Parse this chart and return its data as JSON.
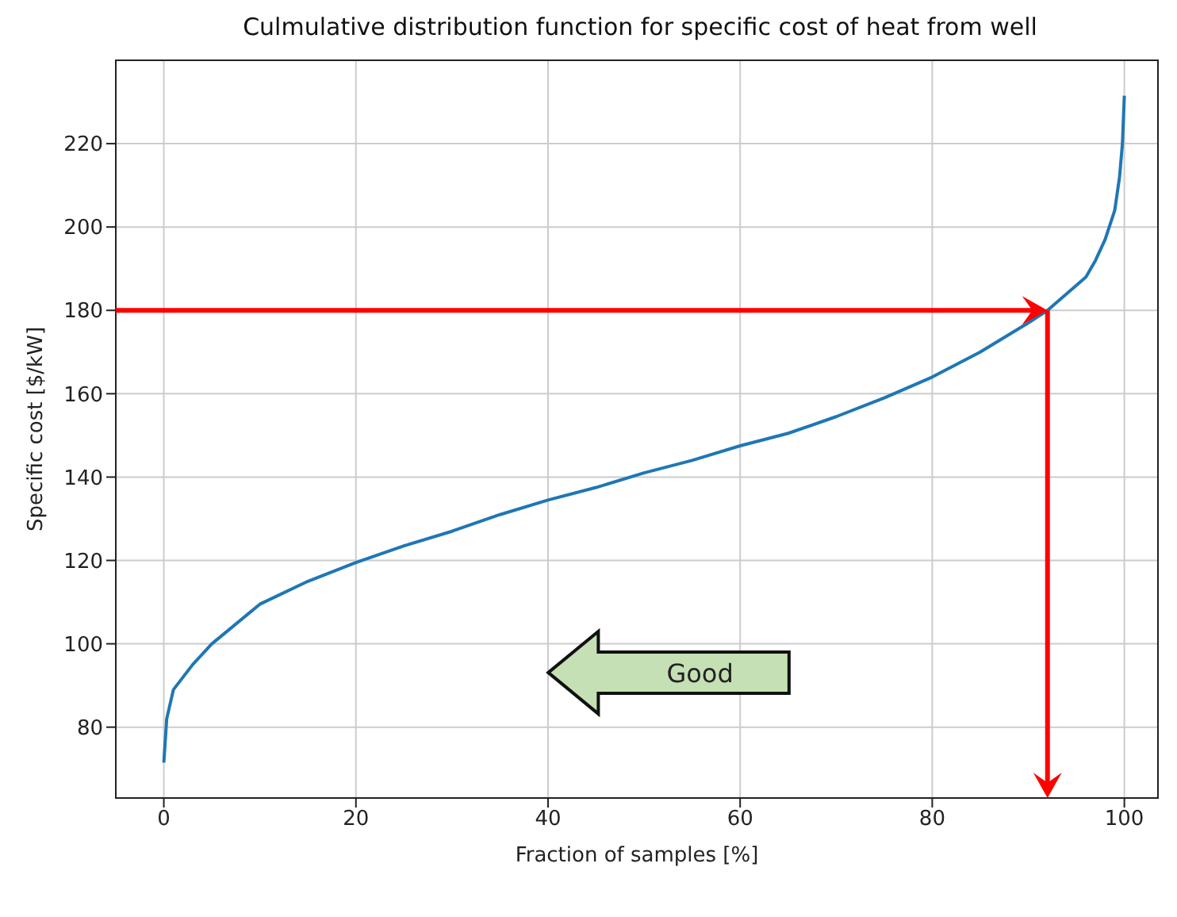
{
  "chart_data": {
    "type": "line",
    "title": "Culmulative distribution function for specific cost of heat from well",
    "xlabel": "Fraction of samples [%]",
    "ylabel": "Specific cost [$/kW]",
    "x": [
      0,
      0.3,
      1,
      2,
      3,
      5,
      10,
      15,
      20,
      25,
      30,
      35,
      40,
      45,
      50,
      55,
      60,
      65,
      70,
      75,
      80,
      85,
      90,
      92,
      94,
      96,
      97,
      98,
      99,
      99.5,
      99.8,
      100
    ],
    "series": [
      {
        "color": "#1f77b4",
        "values": [
          71.5,
          82,
          89,
          92,
          95,
          100,
          109.5,
          115,
          119.5,
          123.5,
          127,
          131,
          134.5,
          137.5,
          141,
          144,
          147.5,
          150.5,
          154.5,
          159,
          164,
          170,
          177,
          180,
          184,
          188,
          192,
          197,
          204,
          212,
          220,
          231.5
        ]
      }
    ],
    "xlim": [
      -5,
      103.5
    ],
    "ylim": [
      63,
      240
    ],
    "xticks": [
      0,
      20,
      40,
      60,
      80,
      100
    ],
    "yticks": [
      80,
      100,
      120,
      140,
      160,
      180,
      200,
      220
    ],
    "grid": true,
    "marker": "none",
    "line_style": "solid",
    "ref_lines": [
      {
        "axis": "y",
        "value": 180,
        "color": "#ff0000"
      },
      {
        "axis": "x",
        "value": 92,
        "color": "#ff0000"
      }
    ],
    "annotations": [
      "Good"
    ]
  }
}
